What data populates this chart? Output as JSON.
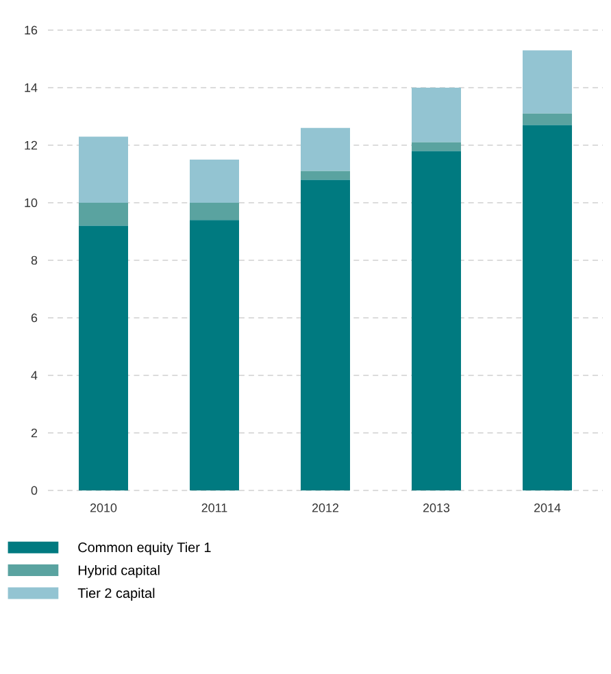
{
  "chart_data": {
    "type": "bar",
    "stacked": true,
    "categories": [
      "2010",
      "2011",
      "2012",
      "2013",
      "2014"
    ],
    "series": [
      {
        "name": "Common equity Tier 1",
        "color": "#007a80",
        "values": [
          9.2,
          9.4,
          10.8,
          11.8,
          12.7
        ]
      },
      {
        "name": "Hybrid capital",
        "color": "#5aa3a0",
        "values": [
          0.8,
          0.6,
          0.3,
          0.3,
          0.4
        ]
      },
      {
        "name": "Tier 2 capital",
        "color": "#93c4d2",
        "values": [
          2.3,
          1.5,
          1.5,
          1.9,
          2.2
        ]
      }
    ],
    "ylim": [
      0,
      16
    ],
    "yticks": [
      0,
      2,
      4,
      6,
      8,
      10,
      12,
      14,
      16
    ],
    "grid": "y",
    "legend": "bottom"
  }
}
